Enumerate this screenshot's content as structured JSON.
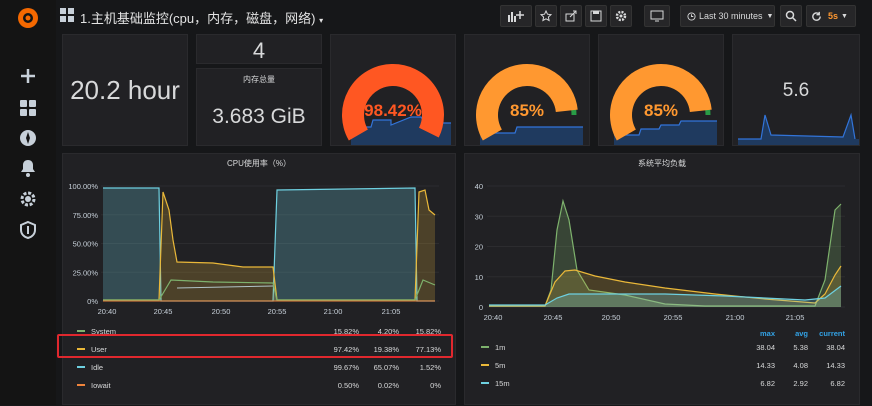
{
  "header": {
    "title": "1.主机基础监控(cpu，内存，磁盘，网络)",
    "time_range": "Last 30 minutes",
    "refresh": "5s"
  },
  "panels": {
    "uptime": {
      "value": "20.2 hour"
    },
    "cpu_cores": {
      "value": "4"
    },
    "mem_total": {
      "title": "内存总量",
      "value": "3.683 GiB"
    },
    "gauge1": {
      "value": "98.42%",
      "level": 98.42,
      "color": "#ff5722"
    },
    "gauge2": {
      "value": "85%",
      "level": 85,
      "color": "#ff9830"
    },
    "gauge3": {
      "value": "85%",
      "level": 85,
      "color": "#ff9830"
    },
    "stat_last": {
      "value": "5.6"
    }
  },
  "cpu_chart": {
    "title": "CPU使用率（%）",
    "y_ticks": [
      "100.00%",
      "75.00%",
      "50.00%",
      "25.00%",
      "0%"
    ],
    "x_ticks": [
      "20:40",
      "20:45",
      "20:50",
      "20:55",
      "21:00",
      "21:05"
    ],
    "legend": [
      {
        "name": "System",
        "c1": "15.82%",
        "c2": "4.20%",
        "c3": "15.82%",
        "color": "#7eb26d"
      },
      {
        "name": "User",
        "c1": "97.42%",
        "c2": "19.38%",
        "c3": "77.13%",
        "color": "#eab839"
      },
      {
        "name": "Idle",
        "c1": "99.67%",
        "c2": "65.07%",
        "c3": "1.52%",
        "color": "#6ed0e0"
      },
      {
        "name": "Iowait",
        "c1": "0.50%",
        "c2": "0.02%",
        "c3": "0%",
        "color": "#ef843c"
      }
    ]
  },
  "load_chart": {
    "title": "系统平均负载",
    "y_ticks": [
      "40",
      "30",
      "20",
      "10",
      "0"
    ],
    "x_ticks": [
      "20:40",
      "20:45",
      "20:50",
      "20:55",
      "21:00",
      "21:05"
    ],
    "headers": {
      "max": "max",
      "avg": "avg",
      "current": "current"
    },
    "legend": [
      {
        "name": "1m",
        "max": "38.04",
        "avg": "5.38",
        "current": "38.04",
        "color": "#7eb26d"
      },
      {
        "name": "5m",
        "max": "14.33",
        "avg": "4.08",
        "current": "14.33",
        "color": "#eab839"
      },
      {
        "name": "15m",
        "max": "6.82",
        "avg": "2.92",
        "current": "6.82",
        "color": "#6ed0e0"
      }
    ]
  }
}
